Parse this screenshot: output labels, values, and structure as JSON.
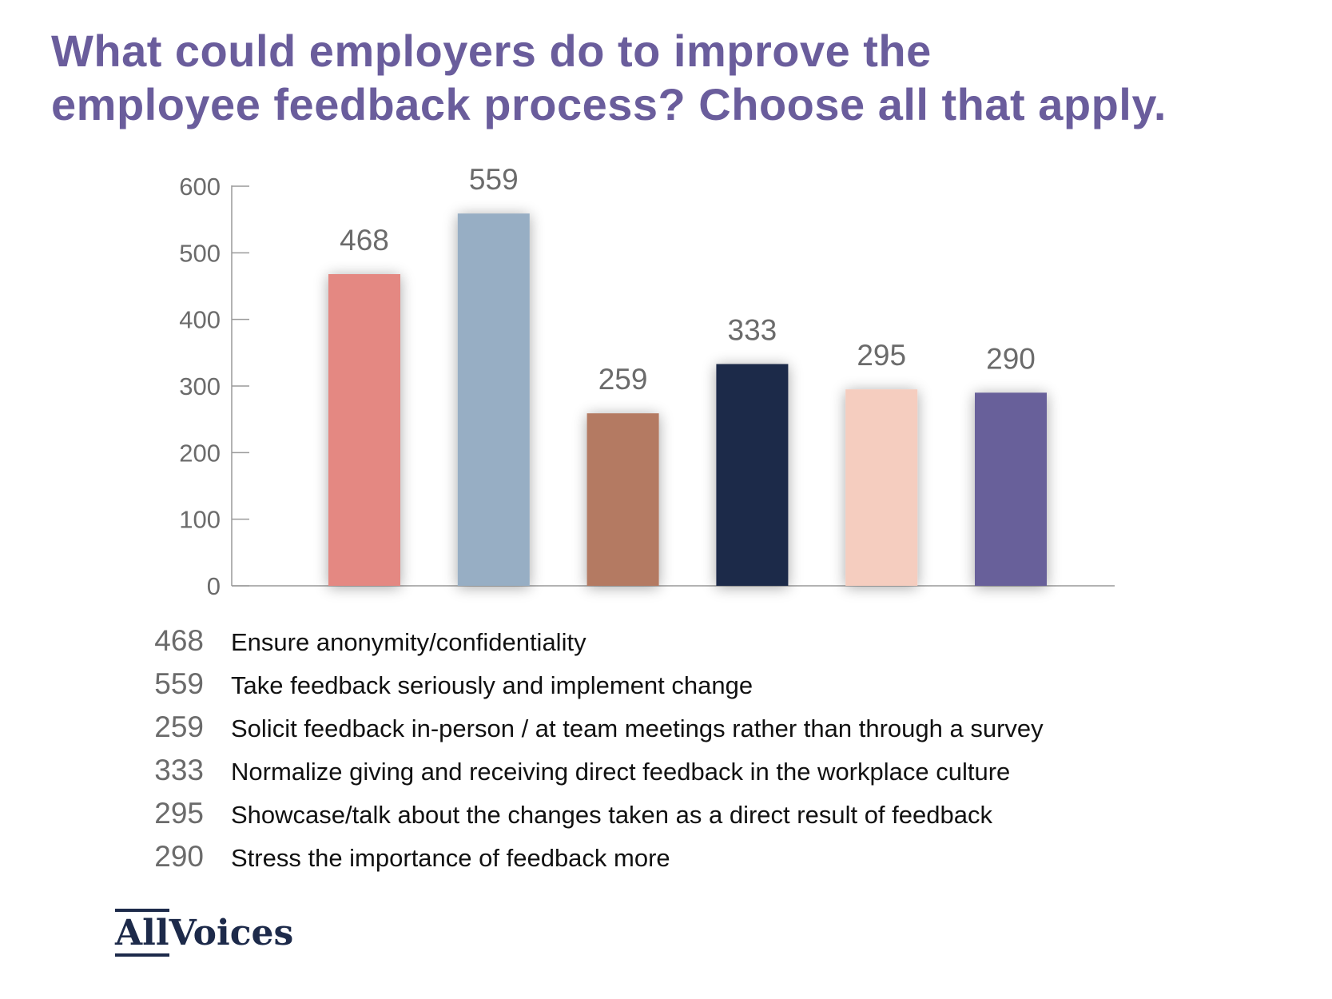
{
  "title_lines": [
    "What could employers do to improve the",
    "employee feedback process? Choose all that apply."
  ],
  "logo": {
    "part1": "All",
    "part2": "Voices"
  },
  "chart_data": {
    "type": "bar",
    "ylim": [
      0,
      600
    ],
    "yticks": [
      0,
      100,
      200,
      300,
      400,
      500,
      600
    ],
    "grid": false,
    "categories": [
      "Ensure anonymity/confidentiality",
      "Take feedback seriously and implement change",
      "Solicit feedback in-person / at team meetings rather than through a survey",
      "Normalize giving and receiving direct feedback in the workplace culture",
      "Showcase/talk about the changes taken as a direct result of feedback",
      "Stress the importance of feedback more"
    ],
    "values": [
      468,
      559,
      259,
      333,
      295,
      290
    ],
    "colors": [
      "#e48882",
      "#97aec4",
      "#b47a62",
      "#1e2a4a",
      "#f5cdbf",
      "#67609a"
    ],
    "legend": [
      {
        "value": "468",
        "label": "Ensure anonymity/confidentiality"
      },
      {
        "value": "559",
        "label": "Take feedback seriously and implement change"
      },
      {
        "value": "259",
        "label": "Solicit feedback in-person / at team meetings rather than through a survey"
      },
      {
        "value": "333",
        "label": "Normalize giving and receiving direct feedback in the workplace culture"
      },
      {
        "value": "295",
        "label": "Showcase/talk about the changes taken as a direct result of feedback"
      },
      {
        "value": "290",
        "label": "Stress the importance of feedback more"
      }
    ]
  }
}
